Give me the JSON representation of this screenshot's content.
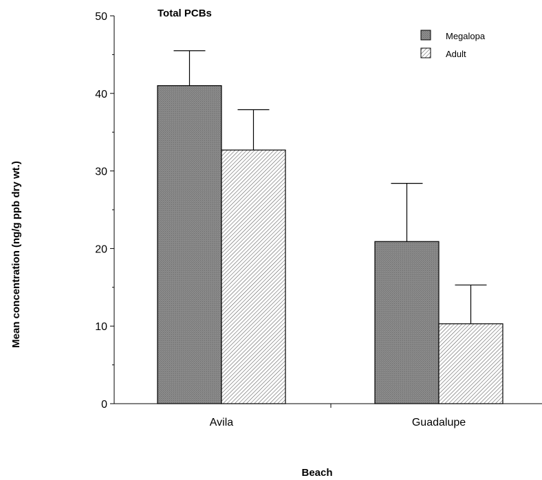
{
  "chart_data": {
    "type": "bar",
    "title": "Total PCBs",
    "xlabel": "Beach",
    "ylabel": "Mean concentration (ng/g ppb dry wt.)",
    "categories": [
      "Avila",
      "Guadalupe"
    ],
    "series": [
      {
        "name": "Megalopa",
        "values": [
          41.0,
          20.9
        ],
        "errors": [
          4.5,
          7.5
        ],
        "color": "#808080",
        "pattern": "solid"
      },
      {
        "name": "Adult",
        "values": [
          32.7,
          10.3
        ],
        "errors": [
          5.2,
          5.0
        ],
        "color": "#ffffff",
        "pattern": "hatch"
      }
    ],
    "ylim": [
      0,
      50
    ],
    "yticks": [
      0,
      10,
      20,
      30,
      40,
      50
    ],
    "legend_position": "top-right",
    "grid": false
  }
}
